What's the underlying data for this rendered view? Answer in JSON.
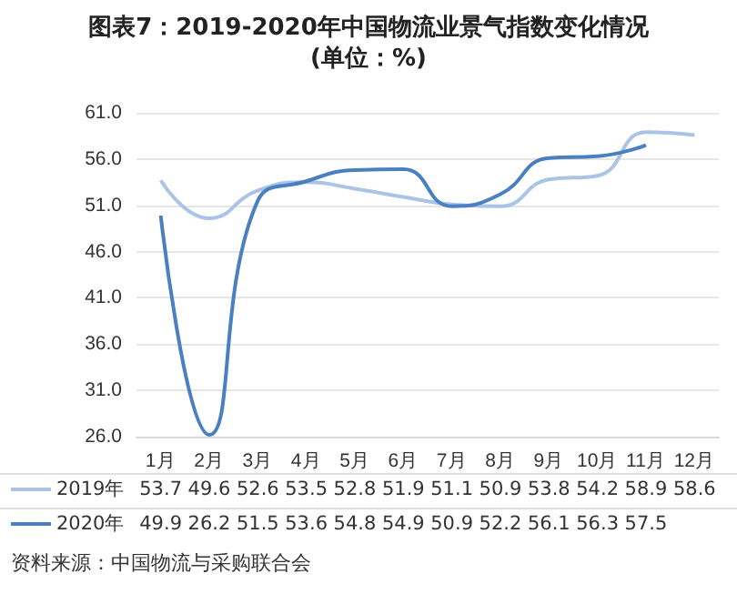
{
  "chart_data": {
    "type": "line",
    "title": "图表7：2019-2020年中国物流业景气指数变化情况",
    "subtitle": "(单位：%)",
    "categories": [
      "1月",
      "2月",
      "3月",
      "4月",
      "5月",
      "6月",
      "7月",
      "8月",
      "9月",
      "10月",
      "11月",
      "12月"
    ],
    "series": [
      {
        "name": "2019年",
        "color": "#a9c4e6",
        "values": [
          53.7,
          49.6,
          52.6,
          53.5,
          52.8,
          51.9,
          51.1,
          50.9,
          53.8,
          54.2,
          58.9,
          58.6
        ]
      },
      {
        "name": "2020年",
        "color": "#4a7fc1",
        "values": [
          49.9,
          26.2,
          51.5,
          53.6,
          54.8,
          54.9,
          50.9,
          52.2,
          56.1,
          56.3,
          57.5,
          null
        ]
      }
    ],
    "ylim": [
      26,
      61
    ],
    "yticks": [
      {
        "value": 26,
        "label": "26.0"
      },
      {
        "value": 31,
        "label": "31.0"
      },
      {
        "value": 36,
        "label": "36.0"
      },
      {
        "value": 41,
        "label": "41.0"
      },
      {
        "value": 46,
        "label": "46.0"
      },
      {
        "value": 51,
        "label": "51.0"
      },
      {
        "value": 56,
        "label": "56.0"
      },
      {
        "value": 61,
        "label": "61.0"
      }
    ],
    "grid": "y",
    "legend": "bottom",
    "data_labels": true,
    "marker": "none",
    "annotations": [
      "资料来源：中国物流与采购联合会"
    ]
  }
}
